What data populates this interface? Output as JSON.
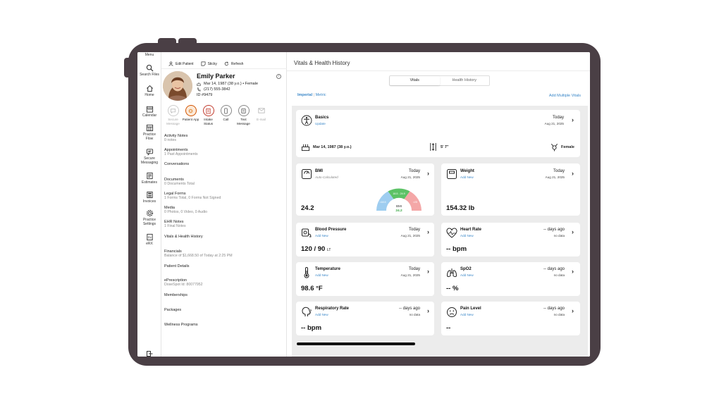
{
  "rail": {
    "menu": "Menu",
    "items": [
      {
        "label": "Search Files",
        "icon": "search-icon"
      },
      {
        "label": "Home",
        "icon": "home-icon"
      },
      {
        "label": "Calendar",
        "icon": "calendar-icon"
      },
      {
        "label": "Practice Flow",
        "icon": "practice-flow-icon"
      },
      {
        "label": "Secure Messaging",
        "icon": "secure-messaging-icon"
      },
      {
        "label": "Estimates",
        "icon": "estimates-icon"
      },
      {
        "label": "Invoices",
        "icon": "invoices-icon"
      },
      {
        "label": "Practice Settings",
        "icon": "gear-icon"
      },
      {
        "label": "eRX",
        "icon": "erx-icon"
      }
    ]
  },
  "patient": {
    "toolbar": {
      "edit": "Edit Patient",
      "sticky": "Sticky",
      "refresh": "Refresh"
    },
    "name": "Emily Parker",
    "dob": "Mar 14, 1987 (38 y.o.) • Female",
    "phone": "(217) 555-3842",
    "id": "ID  #9479",
    "actions": [
      {
        "label": "Secure Message",
        "dim": true
      },
      {
        "label": "Patient App",
        "dim": false
      },
      {
        "label": "Intake Status",
        "dim": false
      },
      {
        "label": "Call",
        "dim": false
      },
      {
        "label": "Text Message",
        "dim": false
      },
      {
        "label": "E-mail",
        "dim": true
      }
    ],
    "sections": [
      {
        "title": "Activity Notes",
        "sub": "0 notes"
      },
      {
        "title": "Appointments",
        "sub": "1 Past Appointments"
      },
      {
        "title": "Conversations",
        "sub": ""
      },
      {
        "title": "Documents",
        "sub": "0 Documents Total"
      },
      {
        "title": "Legal Forms",
        "sub": "1 Forms Total, 0 Forms Not Signed"
      },
      {
        "title": "Media",
        "sub": "0 Photos, 0 Video, 0 Audio"
      },
      {
        "title": "EHR Notes",
        "sub": "1 Final Notes"
      },
      {
        "title": "Vitals & Health History",
        "sub": ""
      },
      {
        "title": "Financials",
        "sub": "Balance of $1,668.50 of Today at 2:25 PM"
      },
      {
        "title": "Patient Details",
        "sub": ""
      },
      {
        "title": "ePrescription",
        "sub": "DoseSpot Id: 80077952"
      },
      {
        "title": "Memberships",
        "sub": ""
      },
      {
        "title": "Packages",
        "sub": ""
      },
      {
        "title": "Wellness Programs",
        "sub": ""
      }
    ]
  },
  "main": {
    "title": "Vitals & Health History",
    "tabs": [
      "Vitals",
      "Health History"
    ],
    "units": {
      "imperial": "Imperial",
      "sep": " | ",
      "metric": "Metric"
    },
    "add_multiple": "Add Multiple Vitals",
    "basics": {
      "title": "Basics",
      "link": "Update",
      "when": "Today",
      "date": "Aug 21, 2025",
      "dob": "Mar 14, 1987 (38 y.o.)",
      "height": "5' 7\"",
      "sex": "Female"
    },
    "bmi": {
      "title": "BMI",
      "sub": "Auto-Calculated",
      "when": "Today",
      "date": "Aug 21, 2025",
      "value": "24.2",
      "gauge": {
        "low": "<18.5",
        "mid": "18.5 - 24.9",
        "high": ">25",
        "label": "BMI",
        "reading": "24.2",
        "fraction": 0.55
      }
    },
    "weight": {
      "title": "Weight",
      "link": "Add New",
      "when": "Today",
      "date": "Aug 21, 2025",
      "value": "154.32 lb"
    },
    "blood_pressure": {
      "title": "Blood Pressure",
      "link": "Add New",
      "when": "Today",
      "date": "Aug 21, 2025",
      "value": "120 / 90",
      "unit": "LT"
    },
    "heart_rate": {
      "title": "Heart Rate",
      "link": "Add New",
      "when": "-- days ago",
      "date": "no data",
      "value": "-- bpm"
    },
    "temperature": {
      "title": "Temperature",
      "link": "Add New",
      "when": "Today",
      "date": "Aug 21, 2025",
      "value": "98.6 °F"
    },
    "spo2": {
      "title": "SpO2",
      "link": "Add New",
      "when": "-- days ago",
      "date": "no data",
      "value": "-- %"
    },
    "respiratory_rate": {
      "title": "Respiratory Rate",
      "link": "Add New",
      "when": "-- days ago",
      "date": "no data",
      "value": "-- bpm"
    },
    "pain_level": {
      "title": "Pain Level",
      "link": "Add New",
      "when": "-- days ago",
      "date": "no data",
      "value": "--"
    }
  },
  "colors": {
    "accent": "#3a87c8",
    "gauge_low": "#9ecdf0",
    "gauge_mid": "#5cc266",
    "gauge_high": "#f4a7a7",
    "frame": "#4a3f45"
  }
}
